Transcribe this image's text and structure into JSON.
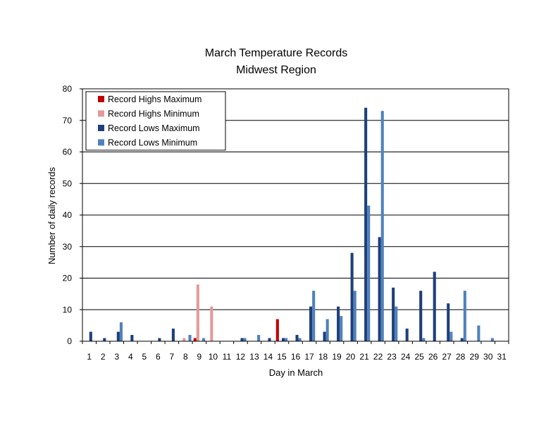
{
  "chart_data": {
    "type": "bar",
    "title": "March Temperature Records",
    "subtitle": "Midwest Region",
    "xlabel": "Day in March",
    "ylabel": "Number of daily records",
    "ylim": [
      0,
      80
    ],
    "yticks": [
      0,
      10,
      20,
      30,
      40,
      50,
      60,
      70,
      80
    ],
    "grid": true,
    "legend_position": "top-left",
    "categories": [
      "1",
      "2",
      "3",
      "4",
      "5",
      "6",
      "7",
      "8",
      "9",
      "10",
      "11",
      "12",
      "13",
      "14",
      "15",
      "16",
      "17",
      "18",
      "19",
      "20",
      "21",
      "22",
      "23",
      "24",
      "25",
      "26",
      "27",
      "28",
      "29",
      "30",
      "31"
    ],
    "series": [
      {
        "name": "Record Highs Maximum",
        "color": "#c00000",
        "values": [
          0,
          0,
          0,
          0,
          0,
          0,
          0,
          0,
          1,
          0,
          0,
          0,
          0,
          0,
          7,
          0,
          0,
          0,
          0,
          0,
          0,
          0,
          0,
          0,
          0,
          0,
          0,
          0,
          0,
          0,
          0
        ]
      },
      {
        "name": "Record Highs Minimum",
        "color": "#e6999b",
        "values": [
          0,
          0,
          0,
          0,
          0,
          0,
          0,
          1,
          18,
          11,
          0,
          0,
          0,
          0,
          0,
          0,
          0,
          0,
          0,
          0,
          0,
          0,
          0,
          0,
          0,
          0,
          0,
          0,
          0,
          0,
          0
        ]
      },
      {
        "name": "Record Lows Maximum",
        "color": "#1f3f7a",
        "values": [
          3,
          1,
          3,
          2,
          0,
          1,
          4,
          0,
          0,
          0,
          0,
          1,
          0,
          1,
          1,
          2,
          11,
          3,
          11,
          28,
          74,
          33,
          17,
          4,
          16,
          22,
          12,
          1,
          0,
          0,
          0
        ]
      },
      {
        "name": "Record Lows Minimum",
        "color": "#4f81bd",
        "values": [
          0,
          0,
          6,
          0,
          0,
          0,
          0,
          2,
          1,
          0,
          0,
          1,
          2,
          0,
          1,
          1,
          16,
          7,
          8,
          16,
          43,
          73,
          11,
          0,
          1,
          0,
          3,
          16,
          5,
          1,
          0
        ]
      }
    ]
  }
}
